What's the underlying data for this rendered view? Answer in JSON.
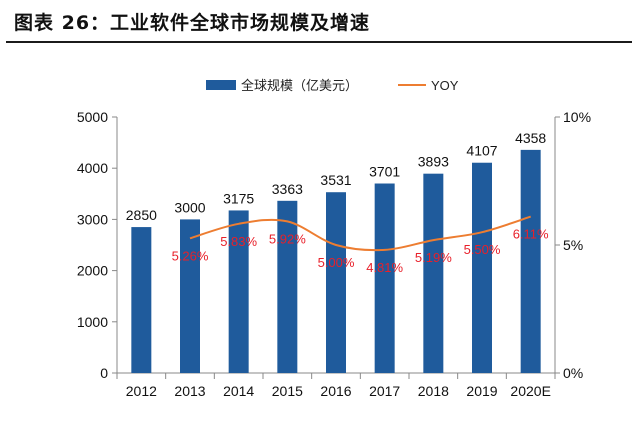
{
  "header": {
    "title": "图表 26：工业软件全球市场规模及增速"
  },
  "chart_data": {
    "type": "bar",
    "title": "",
    "categories": [
      "2012",
      "2013",
      "2014",
      "2015",
      "2016",
      "2017",
      "2018",
      "2019",
      "2020E"
    ],
    "series": [
      {
        "name": "全球规模（亿美元）",
        "type": "bar",
        "axis": "left",
        "color": "#1f5b9c",
        "values": [
          2850,
          3000,
          3175,
          3363,
          3531,
          3701,
          3893,
          4107,
          4358
        ],
        "data_labels": [
          "2850",
          "3000",
          "3175",
          "3363",
          "3531",
          "3701",
          "3893",
          "4107",
          "4358"
        ]
      },
      {
        "name": "YOY",
        "type": "line",
        "axis": "right",
        "color": "#ed7d31",
        "values": [
          null,
          5.26,
          5.83,
          5.92,
          5.0,
          4.81,
          5.19,
          5.5,
          6.11
        ],
        "data_labels": [
          null,
          "5.26%",
          "5.83%",
          "5.92%",
          "5.00%",
          "4.81%",
          "5.19%",
          "5.50%",
          "6.11%"
        ],
        "label_color": "#e8202a"
      }
    ],
    "y_left": {
      "min": 0,
      "max": 5000,
      "ticks": [
        "0",
        "1000",
        "2000",
        "3000",
        "4000",
        "5000"
      ]
    },
    "y_right": {
      "min": 0,
      "max": 10,
      "ticks": [
        "0%",
        "5%",
        "10%"
      ]
    },
    "legend_position": "top-center",
    "grid": false,
    "smooth_line": true
  }
}
